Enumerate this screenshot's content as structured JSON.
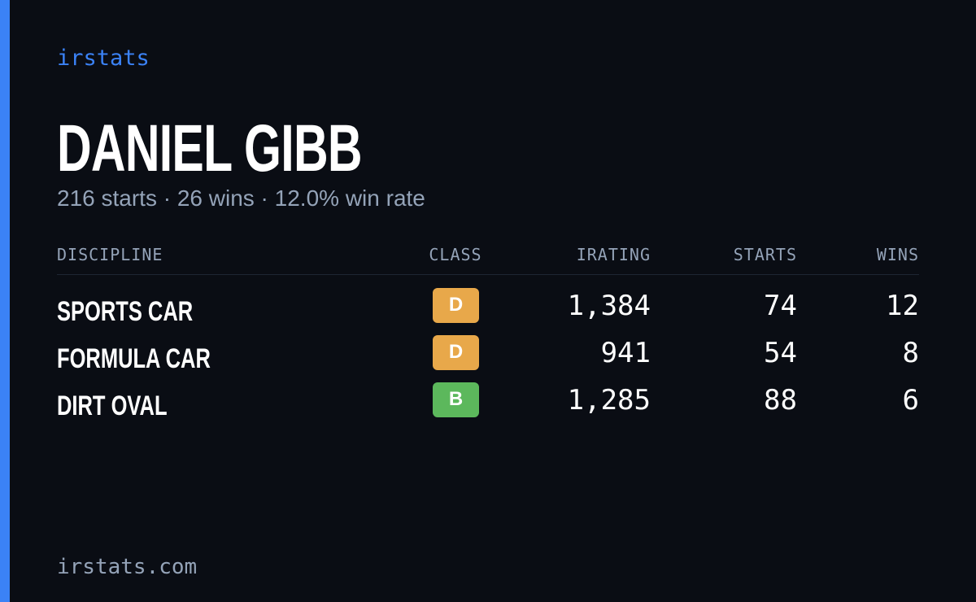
{
  "brand": "irstats",
  "profile": {
    "name": "DANIEL GIBB",
    "summary": "216 starts · 26 wins · 12.0% win rate"
  },
  "table": {
    "headers": [
      "DISCIPLINE",
      "CLASS",
      "IRATING",
      "STARTS",
      "WINS"
    ],
    "rows": [
      {
        "discipline": "SPORTS CAR",
        "class": "D",
        "class_color": "#e8a84a",
        "irating": "1,384",
        "starts": "74",
        "wins": "12"
      },
      {
        "discipline": "FORMULA CAR",
        "class": "D",
        "class_color": "#e8a84a",
        "irating": "941",
        "starts": "54",
        "wins": "8"
      },
      {
        "discipline": "DIRT OVAL",
        "class": "B",
        "class_color": "#5cb85c",
        "irating": "1,285",
        "starts": "88",
        "wins": "6"
      }
    ]
  },
  "footer": "irstats.com"
}
